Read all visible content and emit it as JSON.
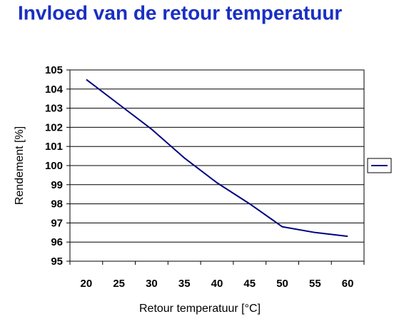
{
  "chart_data": {
    "type": "line",
    "title": "Invloed van de retour temperatuur",
    "x_label": "Retour temperatuur [°C]",
    "y_label": "Rendement [%]",
    "categories": [
      "20",
      "25",
      "30",
      "35",
      "40",
      "45",
      "50",
      "55",
      "60"
    ],
    "series": [
      {
        "color": "#000080",
        "values": [
          104.5,
          103.2,
          101.9,
          100.4,
          99.1,
          98.0,
          96.8,
          96.5,
          96.3
        ]
      }
    ],
    "ylim": [
      95,
      105
    ],
    "yticks": [
      95,
      96,
      97,
      98,
      99,
      100,
      101,
      102,
      103,
      104,
      105
    ],
    "grid": true,
    "legend": "right"
  }
}
